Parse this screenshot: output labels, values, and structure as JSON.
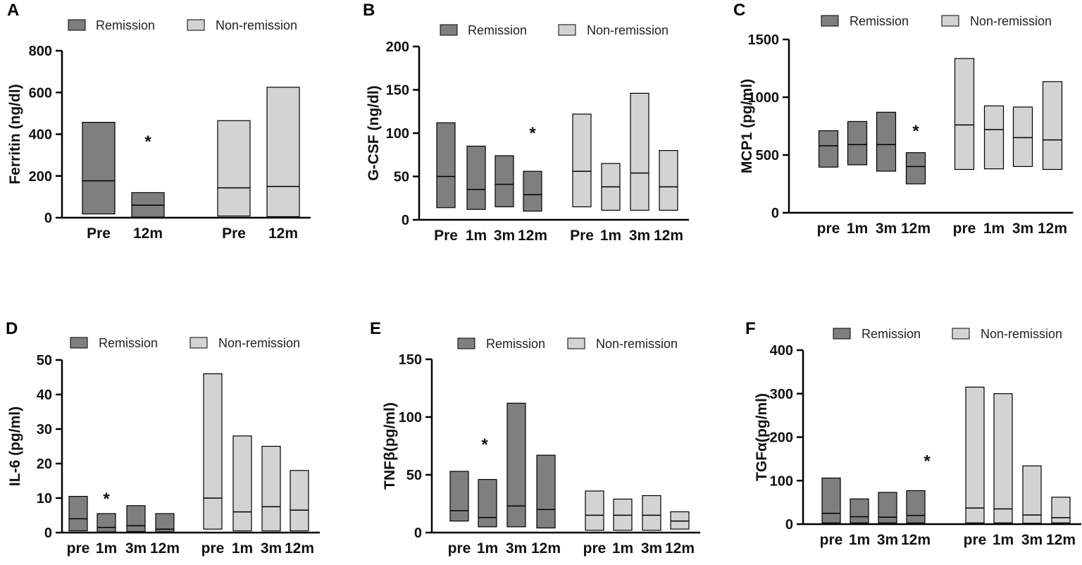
{
  "colors": {
    "remission": "#7f7f7f",
    "non_remission": "#d3d3d3",
    "stroke": "#000000"
  },
  "chart_data": [
    {
      "type": "bar",
      "panel": "A",
      "ylabel": "Ferritin (ng/dl)",
      "ylim": [
        0,
        800
      ],
      "yticks": [
        0,
        200,
        400,
        600,
        800
      ],
      "legend": [
        "Remission",
        "Non-remission"
      ],
      "categories": [
        "Pre",
        "12m",
        "Pre",
        "12m"
      ],
      "groups": [
        "Remission",
        "Remission",
        "Non-remission",
        "Non-remission"
      ],
      "min": [
        18,
        3,
        8,
        5
      ],
      "median": [
        177,
        60,
        143,
        150
      ],
      "max": [
        457,
        120,
        465,
        625
      ],
      "annotations": [
        {
          "text": "*",
          "x_index": 1,
          "value": 385
        }
      ]
    },
    {
      "type": "bar",
      "panel": "B",
      "ylabel": "G-CSF (ng/dl)",
      "ylim": [
        0,
        200
      ],
      "yticks": [
        0,
        50,
        100,
        150,
        200
      ],
      "legend": [
        "Remission",
        "Non-remission"
      ],
      "categories": [
        "Pre",
        "1m",
        "3m",
        "12m",
        "Pre",
        "1m",
        "3m",
        "12m"
      ],
      "groups": [
        "Remission",
        "Remission",
        "Remission",
        "Remission",
        "Non-remission",
        "Non-remission",
        "Non-remission",
        "Non-remission"
      ],
      "min": [
        14,
        12,
        15,
        10,
        15,
        11,
        11,
        11
      ],
      "median": [
        50,
        35,
        41,
        29,
        56,
        38,
        54,
        38
      ],
      "max": [
        112,
        85,
        74,
        56,
        122,
        65,
        146,
        80
      ],
      "annotations": [
        {
          "text": "*",
          "x_index": 3,
          "value": 105
        }
      ]
    },
    {
      "type": "bar",
      "panel": "C",
      "ylabel": "MCP1 (pg/ml)",
      "ylim": [
        0,
        1500
      ],
      "yticks": [
        0,
        500,
        1000,
        1500
      ],
      "legend": [
        "Remission",
        "Non-remission"
      ],
      "categories": [
        "pre",
        "1m",
        "3m",
        "12m",
        "pre",
        "1m",
        "3m",
        "12m"
      ],
      "groups": [
        "Remission",
        "Remission",
        "Remission",
        "Remission",
        "Non-remission",
        "Non-remission",
        "Non-remission",
        "Non-remission"
      ],
      "min": [
        395,
        415,
        360,
        250,
        375,
        380,
        400,
        375
      ],
      "median": [
        580,
        590,
        590,
        400,
        760,
        720,
        650,
        630
      ],
      "max": [
        710,
        790,
        870,
        520,
        1335,
        925,
        915,
        1135
      ],
      "annotations": [
        {
          "text": "*",
          "x_index": 3,
          "value": 745
        }
      ]
    },
    {
      "type": "bar",
      "panel": "D",
      "ylabel": "IL-6 (pg/ml)",
      "ylim": [
        0,
        50
      ],
      "yticks": [
        0,
        10,
        20,
        30,
        40,
        50
      ],
      "legend": [
        "Remission",
        "Non-remission"
      ],
      "categories": [
        "pre",
        "1m",
        "3m",
        "12m",
        "pre",
        "1m",
        "3m",
        "12m"
      ],
      "groups": [
        "Remission",
        "Remission",
        "Remission",
        "Remission",
        "Non-remission",
        "Non-remission",
        "Non-remission",
        "Non-remission"
      ],
      "min": [
        0.5,
        0.2,
        0.3,
        0.2,
        1,
        0.5,
        0.5,
        0.5
      ],
      "median": [
        4,
        1.5,
        2,
        1,
        10,
        6,
        7.5,
        6.5
      ],
      "max": [
        10.5,
        5.5,
        7.8,
        5.5,
        46,
        28,
        25,
        18
      ],
      "annotations": [
        {
          "text": "*",
          "x_index": 1,
          "value": 11
        }
      ]
    },
    {
      "type": "bar",
      "panel": "E",
      "ylabel": "TNFβ(pg/ml)",
      "ylim": [
        0,
        150
      ],
      "yticks": [
        0,
        50,
        100,
        150
      ],
      "legend": [
        "Remission",
        "Non-remission"
      ],
      "categories": [
        "pre",
        "1m",
        "3m",
        "12m",
        "pre",
        "1m",
        "3m",
        "12m"
      ],
      "groups": [
        "Remission",
        "Remission",
        "Remission",
        "Remission",
        "Non-remission",
        "Non-remission",
        "Non-remission",
        "Non-remission"
      ],
      "min": [
        10,
        5,
        5,
        4,
        2,
        2,
        2,
        3
      ],
      "median": [
        19,
        13,
        23,
        20,
        15,
        15,
        15,
        10
      ],
      "max": [
        53,
        46,
        112,
        67,
        36,
        29,
        32,
        18
      ],
      "annotations": [
        {
          "text": "*",
          "x_index": 1,
          "value": 80
        }
      ]
    },
    {
      "type": "bar",
      "panel": "F",
      "ylabel": "TGFα(pg/ml)",
      "ylim": [
        0,
        400
      ],
      "yticks": [
        0,
        100,
        200,
        300,
        400
      ],
      "legend": [
        "Remission",
        "Non-remission"
      ],
      "categories": [
        "pre",
        "1m",
        "3m",
        "12m",
        "pre",
        "1m",
        "3m",
        "12m"
      ],
      "groups": [
        "Remission",
        "Remission",
        "Remission",
        "Remission",
        "Non-remission",
        "Non-remission",
        "Non-remission",
        "Non-remission"
      ],
      "min": [
        3,
        3,
        3,
        3,
        3,
        3,
        2,
        3
      ],
      "median": [
        25,
        17,
        16,
        20,
        37,
        35,
        21,
        15
      ],
      "max": [
        106,
        58,
        73,
        77,
        315,
        300,
        134,
        62
      ],
      "annotations": [
        {
          "text": "*",
          "x_index": 3,
          "value": 155
        }
      ]
    }
  ]
}
